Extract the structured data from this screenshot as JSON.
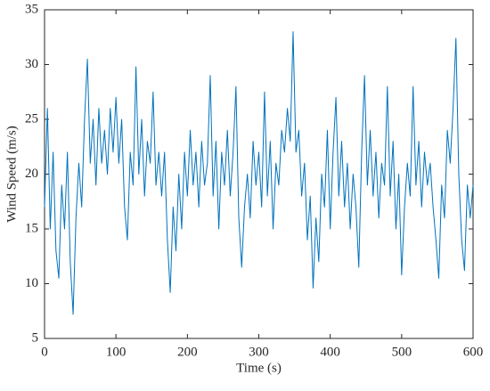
{
  "chart_data": {
    "type": "line",
    "xlabel": "Time (s)",
    "ylabel": "Wind Speed (m/s)",
    "xlim": [
      0,
      600
    ],
    "ylim": [
      5,
      35
    ],
    "xticks": [
      0,
      100,
      200,
      300,
      400,
      500,
      600
    ],
    "yticks": [
      5,
      10,
      15,
      20,
      25,
      30,
      35
    ],
    "series": [
      {
        "color": "#0072bd",
        "x": [
          0,
          4,
          8,
          12,
          16,
          20,
          24,
          28,
          32,
          36,
          40,
          44,
          48,
          52,
          56,
          60,
          64,
          68,
          72,
          76,
          80,
          84,
          88,
          92,
          96,
          100,
          104,
          108,
          112,
          116,
          120,
          124,
          128,
          132,
          136,
          140,
          144,
          148,
          152,
          156,
          160,
          164,
          168,
          172,
          176,
          180,
          184,
          188,
          192,
          196,
          200,
          204,
          208,
          212,
          216,
          220,
          224,
          228,
          232,
          236,
          240,
          244,
          248,
          252,
          256,
          260,
          264,
          268,
          272,
          276,
          280,
          284,
          288,
          292,
          296,
          300,
          304,
          308,
          312,
          316,
          320,
          324,
          328,
          332,
          336,
          340,
          344,
          348,
          352,
          356,
          360,
          364,
          368,
          372,
          376,
          380,
          384,
          388,
          392,
          396,
          400,
          404,
          408,
          412,
          416,
          420,
          424,
          428,
          432,
          436,
          440,
          444,
          448,
          452,
          456,
          460,
          464,
          468,
          472,
          476,
          480,
          484,
          488,
          492,
          496,
          500,
          504,
          508,
          512,
          516,
          520,
          524,
          528,
          532,
          536,
          540,
          544,
          548,
          552,
          556,
          560,
          564,
          568,
          572,
          576,
          580,
          584,
          588,
          592,
          596,
          600
        ],
        "values": [
          17,
          26,
          15,
          22,
          13,
          10.5,
          19,
          15,
          22,
          12,
          7.2,
          16,
          21,
          17,
          25,
          30.5,
          21,
          25,
          19,
          26,
          21,
          24,
          20,
          26,
          22,
          27,
          21,
          25,
          17,
          14,
          22,
          19,
          29.8,
          20,
          25,
          18,
          23,
          21,
          27.5,
          19,
          22,
          18,
          22,
          14,
          9.2,
          17,
          13,
          20,
          15,
          22,
          18,
          24,
          19,
          22,
          17,
          23,
          19,
          21,
          29,
          18,
          23,
          15,
          22,
          19,
          24,
          18,
          22,
          28,
          16,
          11.5,
          17,
          20,
          16,
          23,
          19,
          22,
          17,
          27.5,
          18,
          23,
          15,
          21,
          19,
          24,
          22,
          26,
          23,
          33,
          22,
          24,
          18,
          21,
          14,
          18,
          9.6,
          16,
          12,
          20,
          17,
          24,
          15,
          22,
          27,
          18,
          23,
          17,
          21,
          15,
          20,
          17,
          11.5,
          22,
          29,
          19,
          24,
          18,
          22,
          16,
          21,
          19,
          28,
          18,
          23,
          15,
          20,
          10.8,
          17,
          21,
          18,
          28,
          19,
          23,
          17,
          22,
          19,
          21,
          17,
          14,
          10.5,
          19,
          16,
          24,
          21,
          26,
          32.4,
          20,
          14,
          11.2,
          19,
          16,
          19
        ]
      }
    ]
  }
}
